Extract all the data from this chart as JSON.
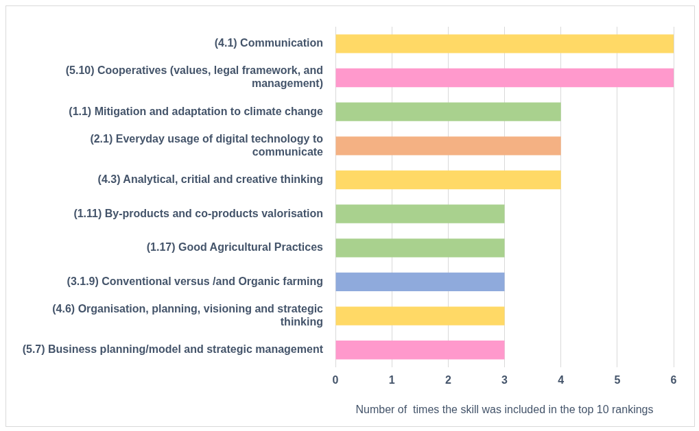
{
  "chart_data": {
    "type": "bar",
    "orientation": "horizontal",
    "xlabel": "Number of  times the skill was included in the top 10 rankings",
    "categories": [
      "(4.1) Communication",
      "(5.10) Cooperatives (values, legal framework, and management)",
      "(1.1) Mitigation and adaptation to climate change",
      "(2.1) Everyday usage of digital technology to communicate",
      "(4.3) Analytical, critial and creative thinking",
      "(1.11) By-products and co-products valorisation",
      "(1.17) Good Agricultural Practices",
      "(3.1.9) Conventional versus /and Organic farming",
      "(4.6) Organisation, planning, visioning and strategic thinking",
      "(5.7) Business planning/model and strategic management"
    ],
    "values": [
      6,
      6,
      4,
      4,
      4,
      3,
      3,
      3,
      3,
      3
    ],
    "colors": [
      "#ffd966",
      "#ff99cc",
      "#a9d18e",
      "#f4b183",
      "#ffd966",
      "#a9d18e",
      "#a9d18e",
      "#8faadc",
      "#ffd966",
      "#ff99cc"
    ],
    "xlim": [
      0,
      6
    ],
    "xticks": [
      0,
      1,
      2,
      3,
      4,
      5,
      6
    ],
    "grid": "x",
    "legend": false
  }
}
